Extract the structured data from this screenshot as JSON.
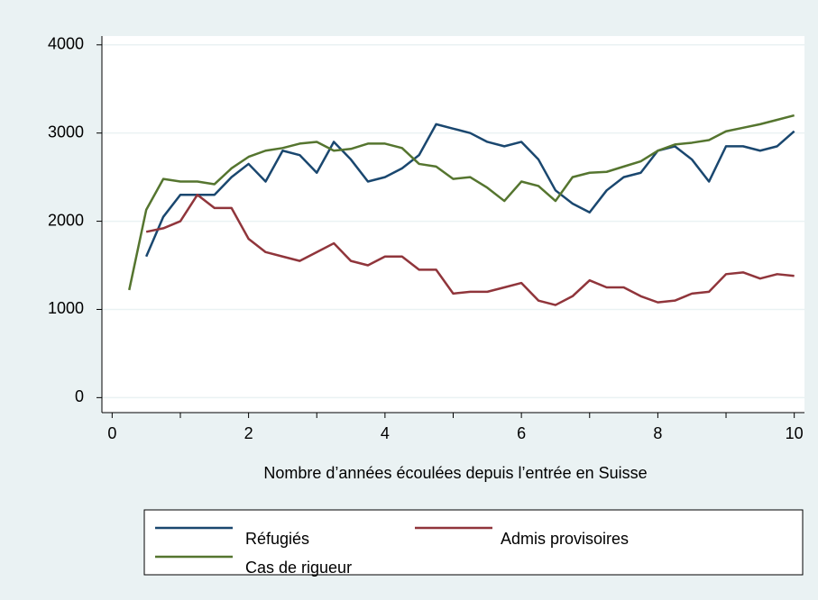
{
  "chart_data": {
    "type": "line",
    "x_label": "Nombre d’années écoulées depuis l’entrée en Suisse",
    "x": [
      0.25,
      0.5,
      0.75,
      1,
      1.25,
      1.5,
      1.75,
      2,
      2.25,
      2.5,
      2.75,
      3,
      3.25,
      3.5,
      3.75,
      4,
      4.25,
      4.5,
      4.75,
      5,
      5.25,
      5.5,
      5.75,
      6,
      6.25,
      6.5,
      6.75,
      7,
      7.25,
      7.5,
      7.75,
      8,
      8.25,
      8.5,
      8.75,
      9,
      9.25,
      9.5,
      9.75,
      10
    ],
    "series": [
      {
        "name": "Réfugiés",
        "color": "#1a476f",
        "values": [
          null,
          1600,
          2050,
          2300,
          2300,
          2300,
          2500,
          2650,
          2450,
          2800,
          2750,
          2550,
          2900,
          2700,
          2450,
          2500,
          2600,
          2750,
          3100,
          3050,
          3000,
          2900,
          2850,
          2900,
          2700,
          2350,
          2200,
          2100,
          2350,
          2500,
          2550,
          2800,
          2850,
          2700,
          2450,
          2850,
          2850,
          2800,
          2850,
          3020
        ]
      },
      {
        "name": "Admis provisoires",
        "color": "#90353b",
        "values": [
          null,
          1880,
          1920,
          2000,
          2300,
          2150,
          2150,
          1800,
          1650,
          1600,
          1550,
          1650,
          1750,
          1550,
          1500,
          1600,
          1600,
          1450,
          1450,
          1180,
          1200,
          1200,
          1250,
          1300,
          1100,
          1050,
          1150,
          1330,
          1250,
          1250,
          1150,
          1080,
          1100,
          1180,
          1200,
          1400,
          1420,
          1350,
          1400,
          1380
        ]
      },
      {
        "name": "Cas de rigueur",
        "color": "#55752f",
        "values": [
          1220,
          2130,
          2480,
          2450,
          2450,
          2420,
          2600,
          2730,
          2800,
          2830,
          2880,
          2900,
          2800,
          2820,
          2880,
          2880,
          2830,
          2650,
          2620,
          2480,
          2500,
          2380,
          2230,
          2450,
          2400,
          2230,
          2500,
          2550,
          2560,
          2620,
          2680,
          2800,
          2870,
          2890,
          2920,
          3020,
          3060,
          3100,
          3150,
          3200
        ]
      }
    ],
    "xlim": [
      -0.15,
      10.15
    ],
    "ylim": [
      -170,
      4100
    ],
    "xticks": [
      0,
      2,
      4,
      6,
      8,
      10
    ],
    "xminorticks": [
      1,
      3,
      5,
      7,
      9
    ],
    "yticks": [
      0,
      1000,
      2000,
      3000,
      4000
    ],
    "grid": true
  }
}
